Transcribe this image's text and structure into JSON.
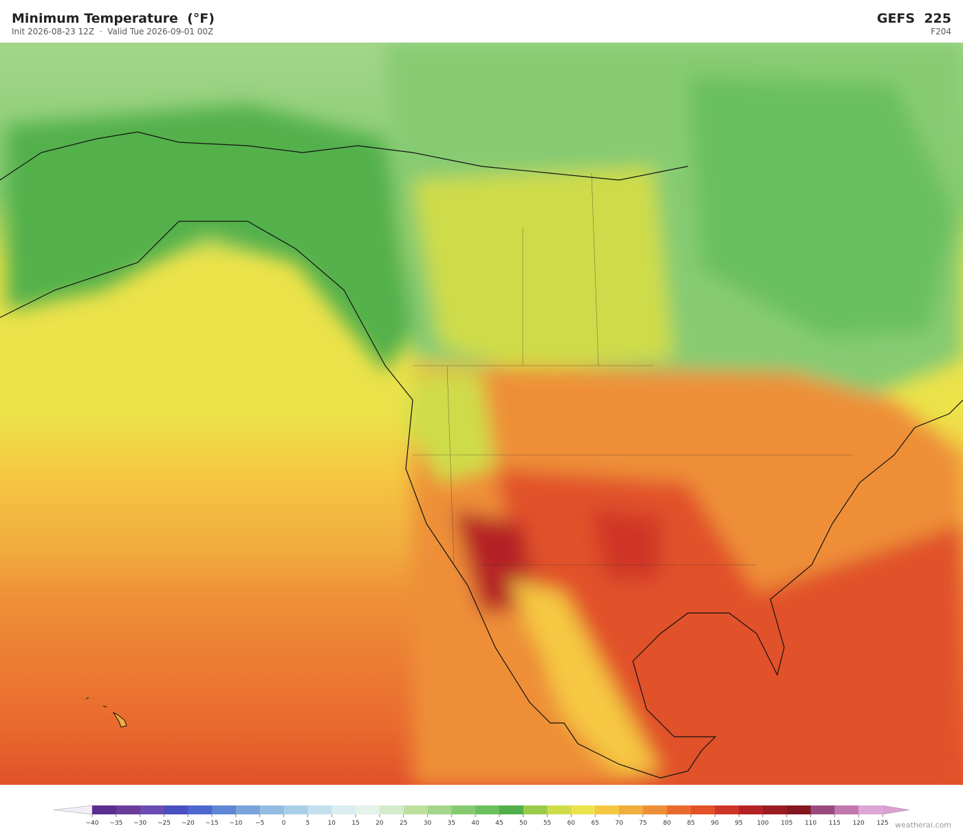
{
  "header": {
    "title": "Minimum Temperature  (°F)",
    "subtitle": "Init 2026-08-23 12Z  ·  Valid Tue 2026-09-01 00Z",
    "model": "GEFS  225",
    "forecast_hour": "F204"
  },
  "colorbar": {
    "ticks": [
      {
        "value": -40,
        "label": "−40"
      },
      {
        "value": -35,
        "label": "−35"
      },
      {
        "value": -30,
        "label": "−30"
      },
      {
        "value": -25,
        "label": "−25"
      },
      {
        "value": -20,
        "label": "−20"
      },
      {
        "value": -15,
        "label": "−15"
      },
      {
        "value": -10,
        "label": "−10"
      },
      {
        "value": -5,
        "label": "−5"
      },
      0,
      5,
      10,
      15,
      20,
      25,
      30,
      35,
      40,
      45,
      50,
      55,
      60,
      65,
      70,
      75,
      80,
      85,
      90,
      95,
      100,
      105,
      110,
      115,
      120,
      125
    ],
    "colors": [
      "#5b2d91",
      "#6a3d9a",
      "#6b4db3",
      "#4a4fc2",
      "#4f67cf",
      "#5f86d4",
      "#7aa3d9",
      "#93bce3",
      "#a8cfe8",
      "#c3e0ef",
      "#daeef2",
      "#e6f3ea",
      "#d4eccc",
      "#bde0a0",
      "#a3d68a",
      "#86cb72",
      "#6bbf5e",
      "#52b04c",
      "#9ccb4a",
      "#cfdc4a",
      "#ece24a",
      "#f5c842",
      "#f1ad3e",
      "#ee8f37",
      "#e96a2e",
      "#e1512a",
      "#cf3527",
      "#b52225",
      "#9c1b21",
      "#84161f",
      "#9b4a7d",
      "#c178ae",
      "#dda7d5"
    ],
    "under_color": "#f2eef6",
    "over_color": "#d9a0d0"
  },
  "watermark": "weatherai.com"
}
